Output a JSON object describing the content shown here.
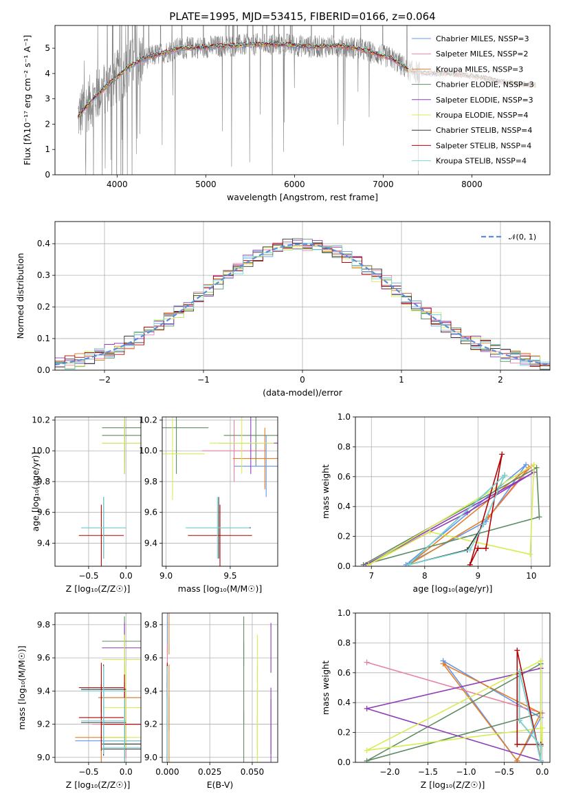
{
  "colors": {
    "chabrier_miles": "#6495ed",
    "salpeter_miles": "#e8819f",
    "kroupa_miles": "#e67e22",
    "chabrier_elodie": "#5e8c62",
    "salpeter_elodie": "#8e3bb5",
    "kroupa_elodie": "#d6ec52",
    "chabrier_stelib": "#333333",
    "salpeter_stelib": "#b30000",
    "kroupa_stelib": "#78d8d8",
    "data": "#808080",
    "grid": "#b0b0b0"
  },
  "chart_data": [
    {
      "id": "spectrum",
      "type": "line",
      "title": "PLATE=1995, MJD=53415, FIBERID=0166, z=0.064",
      "xlabel": "wavelength [Angstrom, rest frame]",
      "ylabel": "Flux [fλ10⁻¹⁷ erg cm⁻² s⁻¹ A⁻¹]",
      "xlim": [
        3300,
        8880
      ],
      "ylim": [
        0,
        5.9
      ],
      "xticks": [
        "4000",
        "5000",
        "6000",
        "7000",
        "8000"
      ],
      "yticks": [
        "0",
        "1",
        "2",
        "3",
        "4",
        "5"
      ],
      "grid": false,
      "legend_position": "top-right",
      "legend": [
        "Chabrier MILES, NSSP=3",
        "Salpeter MILES, NSSP=2",
        "Kroupa MILES, NSSP=3",
        "Chabrier ELODIE, NSSP=3",
        "Salpeter ELODIE, NSSP=3",
        "Kroupa ELODIE, NSSP=4",
        "Chabrier STELIB, NSSP=4",
        "Salpeter STELIB, NSSP=4",
        "Kroupa STELIB, NSSP=4"
      ],
      "continuum": {
        "x": [
          3560,
          3700,
          3850,
          3950,
          4100,
          4300,
          4500,
          4700,
          5000,
          5300,
          5600,
          5900,
          6200,
          6500,
          6700,
          6900,
          7100,
          7300,
          7500,
          7700,
          7900,
          8100,
          8300,
          8500,
          8700
        ],
        "y": [
          2.3,
          2.9,
          3.4,
          3.7,
          4.2,
          4.6,
          4.8,
          5.0,
          5.05,
          5.1,
          5.15,
          5.15,
          5.05,
          5.1,
          5.0,
          4.8,
          4.6,
          4.1,
          4.0,
          4.0,
          3.95,
          3.85,
          3.7,
          3.6,
          3.55
        ]
      }
    },
    {
      "id": "residuals",
      "type": "histogram",
      "xlabel": "(data-model)/error",
      "ylabel": "Normed distribution",
      "xlim": [
        -2.5,
        2.5
      ],
      "ylim": [
        0,
        0.47
      ],
      "xticks": [
        "−2",
        "−1",
        "0",
        "1",
        "2"
      ],
      "yticks": [
        "0.0",
        "0.1",
        "0.2",
        "0.3",
        "0.4"
      ],
      "grid": true,
      "legend_position": "top-right",
      "legend": [
        "𝒩(0, 1)"
      ],
      "bin_width": 0.1
    },
    {
      "id": "age_vs_Z",
      "type": "scatter",
      "xlabel": "Z [log₁₀(Z/Z☉)]",
      "ylabel": "age  [log₁₀(age/yr)]",
      "xlim": [
        -0.95,
        0.2
      ],
      "ylim": [
        9.25,
        10.22
      ],
      "xticks": [
        "−0.5",
        "0.0"
      ],
      "yticks": [
        "9.4",
        "9.6",
        "9.8",
        "10.0",
        "10.2"
      ],
      "grid": true
    },
    {
      "id": "age_vs_mass",
      "type": "scatter",
      "xlabel": "mass [log₁₀(M/M☉)]",
      "ylabel": "",
      "xlim": [
        8.97,
        9.87
      ],
      "ylim": [
        9.25,
        10.22
      ],
      "xticks": [
        "9.0",
        "9.5"
      ],
      "yticks": [
        "9.4",
        "9.6",
        "9.8",
        "10.0",
        "10.2"
      ],
      "grid": true
    },
    {
      "id": "weight_vs_age",
      "type": "line",
      "xlabel": "age  [log₁₀(age/yr)]",
      "ylabel": "mass weight",
      "xlim": [
        6.7,
        10.35
      ],
      "ylim": [
        0,
        1
      ],
      "xticks": [
        "7",
        "8",
        "9",
        "10"
      ],
      "yticks": [
        "0.0",
        "0.2",
        "0.4",
        "0.6",
        "0.8",
        "1.0"
      ],
      "grid": true
    },
    {
      "id": "mass_vs_Z",
      "type": "scatter",
      "xlabel": "Z [log₁₀(Z/Z☉)]",
      "ylabel": "mass [log₁₀(M/M☉)]",
      "xlim": [
        -0.95,
        0.2
      ],
      "ylim": [
        8.97,
        9.87
      ],
      "xticks": [
        "−0.5",
        "0.0"
      ],
      "yticks": [
        "9.0",
        "9.2",
        "9.4",
        "9.6",
        "9.8"
      ],
      "grid": true
    },
    {
      "id": "mass_vs_ebv",
      "type": "scatter",
      "xlabel": "E(B-V)",
      "ylabel": "",
      "xlim": [
        -0.003,
        0.065
      ],
      "ylim": [
        8.97,
        9.87
      ],
      "xticks": [
        "0.000",
        "0.025",
        "0.050"
      ],
      "yticks": [
        "9.0",
        "9.2",
        "9.4",
        "9.6",
        "9.8"
      ],
      "grid": true
    },
    {
      "id": "weight_vs_Z",
      "type": "line",
      "xlabel": "Z [log₁₀(Z/Z☉)]",
      "ylabel": "mass weight",
      "xlim": [
        -2.45,
        0.1
      ],
      "ylim": [
        0,
        1
      ],
      "xticks": [
        "−2.0",
        "−1.5",
        "−1.0",
        "−0.5",
        "0.0"
      ],
      "yticks": [
        "0.0",
        "0.2",
        "0.4",
        "0.6",
        "0.8",
        "1.0"
      ],
      "grid": true
    }
  ],
  "models": [
    {
      "key": "chabrier_miles",
      "ages": [
        9.9,
        9.15,
        7.65
      ],
      "Z": [
        -1.3,
        -0.02,
        -0.33
      ],
      "w": [
        0.68,
        0.3,
        0.01
      ],
      "mass": [
        9.78,
        9.36,
        9.1
      ],
      "Zerr": 0.35,
      "ebv": 0.0
    },
    {
      "key": "salpeter_miles",
      "ages": [
        10.0,
        9.2
      ],
      "Z": [
        -2.3,
        0.0
      ],
      "w": [
        0.67,
        0.33
      ],
      "mass": [
        9.53,
        9.2
      ],
      "Zerr": 0.45,
      "ebv": 0.0
    },
    {
      "key": "kroupa_miles",
      "ages": [
        9.95,
        9.2,
        7.7
      ],
      "Z": [
        -1.3,
        -0.02,
        -0.33
      ],
      "w": [
        0.66,
        0.33,
        0.01
      ],
      "mass": [
        9.77,
        9.36,
        9.12
      ],
      "Zerr": 0.35,
      "ebv": 0.001
    },
    {
      "key": "chabrier_elodie",
      "ages": [
        10.1,
        10.15,
        6.85
      ],
      "Z": [
        -0.02,
        -0.02,
        -2.3
      ],
      "w": [
        0.66,
        0.33,
        0.01
      ],
      "mass": [
        9.7,
        9.08,
        9.45
      ],
      "Zerr": 0.3,
      "ebv": 0.045
    },
    {
      "key": "salpeter_elodie",
      "ages": [
        10.05,
        8.8,
        6.9
      ],
      "Z": [
        -0.02,
        -2.3,
        -0.02
      ],
      "w": [
        0.63,
        0.36,
        0.01
      ],
      "mass": [
        9.66,
        9.22,
        9.1
      ],
      "Zerr": 0.3,
      "ebv": 0.061
    },
    {
      "key": "kroupa_elodie",
      "ages": [
        10.05,
        9.98,
        8.1,
        6.95
      ],
      "Z": [
        -0.02,
        -2.3,
        0.0,
        -0.02
      ],
      "w": [
        0.68,
        0.08,
        0.23,
        0.01
      ],
      "mass": [
        9.59,
        9.05,
        9.3,
        9.12
      ],
      "Zerr": 0.3,
      "ebv": 0.053
    },
    {
      "key": "chabrier_stelib",
      "ages": [
        9.5,
        9.1,
        8.8,
        7.7
      ],
      "Z": [
        -0.3,
        -0.3,
        -0.02,
        -0.02
      ],
      "w": [
        0.61,
        0.28,
        0.11,
        0.01
      ],
      "mass": [
        9.41,
        9.21,
        9.08,
        9.05
      ],
      "Zerr": 0.3,
      "ebv": 0.0
    },
    {
      "key": "salpeter_stelib",
      "ages": [
        9.45,
        9.15,
        9.0,
        8.85
      ],
      "Z": [
        -0.33,
        -0.33,
        -0.02,
        -0.02
      ],
      "w": [
        0.75,
        0.12,
        0.12,
        0.01
      ],
      "mass": [
        9.42,
        9.24,
        9.2,
        9.2
      ],
      "Zerr": 0.3,
      "ebv": 0.0
    },
    {
      "key": "kroupa_stelib",
      "ages": [
        9.5,
        9.1,
        8.85,
        7.7
      ],
      "Z": [
        -0.3,
        -0.3,
        -0.02,
        -0.02
      ],
      "w": [
        0.61,
        0.28,
        0.11,
        0.01
      ],
      "mass": [
        9.4,
        9.22,
        9.1,
        9.06
      ],
      "Zerr": 0.3,
      "ebv": 0.0
    }
  ]
}
